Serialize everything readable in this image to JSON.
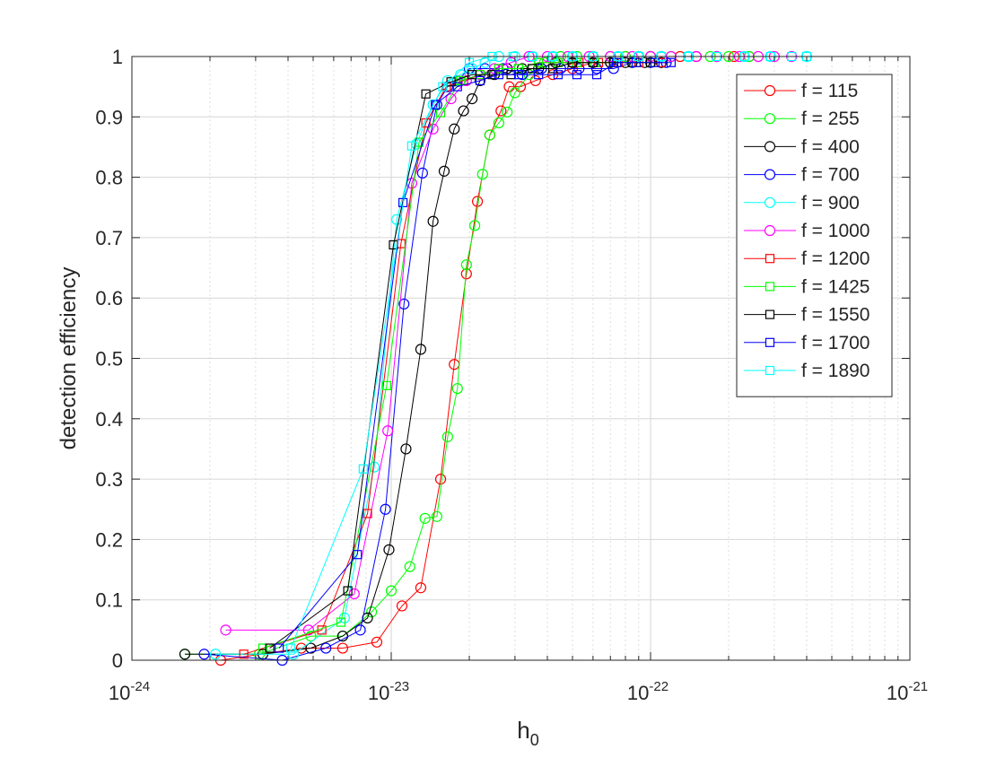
{
  "chart_data": {
    "type": "line",
    "title": "",
    "xlabel": {
      "base": "h",
      "subscript": "0"
    },
    "ylabel": "detection efficiency",
    "xscale": "log",
    "xlim": [
      1e-24,
      1e-21
    ],
    "ylim": [
      0,
      1
    ],
    "grid": true,
    "legend_position": "top-right",
    "x_ticks": [
      {
        "value": 1e-24,
        "base": "10",
        "exp": "-24"
      },
      {
        "value": 1e-23,
        "base": "10",
        "exp": "-23"
      },
      {
        "value": 1e-22,
        "base": "10",
        "exp": "-22"
      },
      {
        "value": 1e-21,
        "base": "10",
        "exp": "-21"
      }
    ],
    "y_ticks": [
      {
        "value": 0,
        "label": "0"
      },
      {
        "value": 0.1,
        "label": "0.1"
      },
      {
        "value": 0.2,
        "label": "0.2"
      },
      {
        "value": 0.3,
        "label": "0.3"
      },
      {
        "value": 0.4,
        "label": "0.4"
      },
      {
        "value": 0.5,
        "label": "0.5"
      },
      {
        "value": 0.6,
        "label": "0.6"
      },
      {
        "value": 0.7,
        "label": "0.7"
      },
      {
        "value": 0.8,
        "label": "0.8"
      },
      {
        "value": 0.9,
        "label": "0.9"
      },
      {
        "value": 1,
        "label": "1"
      }
    ],
    "series": [
      {
        "name": "f = 115",
        "color": "#ff0000",
        "marker": "circle",
        "x": [
          2.2e-24,
          4.5e-24,
          6.5e-24,
          8.8e-24,
          1.1e-23,
          1.3e-23,
          1.55e-23,
          1.75e-23,
          1.95e-23,
          2.15e-23,
          2.4e-23,
          2.65e-23,
          2.85e-23,
          3.15e-23,
          3.6e-23,
          4.2e-23,
          5e-23,
          6e-23,
          7e-23,
          8e-23,
          9e-23,
          1e-22,
          1.1e-22,
          1.3e-22,
          1.5e-22,
          1.8e-22,
          2.1e-22,
          2.4e-22
        ],
        "y": [
          0.0,
          0.02,
          0.02,
          0.03,
          0.09,
          0.12,
          0.3,
          0.49,
          0.64,
          0.76,
          0.87,
          0.91,
          0.95,
          0.95,
          0.96,
          0.97,
          0.98,
          0.99,
          0.99,
          1.0,
          1.0,
          1.0,
          1.0,
          1.0,
          1.0,
          1.0,
          1.0,
          1.0
        ]
      },
      {
        "name": "f = 255",
        "color": "#00ff00",
        "marker": "circle",
        "x": [
          1.6e-24,
          3.1e-24,
          4.9e-24,
          6.5e-24,
          8.4e-24,
          1e-23,
          1.18e-23,
          1.35e-23,
          1.5e-23,
          1.65e-23,
          1.8e-23,
          1.95e-23,
          2.1e-23,
          2.25e-23,
          2.4e-23,
          2.6e-23,
          2.8e-23,
          3e-23,
          3.4e-23,
          3.9e-23,
          4.5e-23,
          5.2e-23,
          6e-23,
          7e-23,
          8e-23,
          9e-23,
          1e-22,
          1.2e-22,
          1.4e-22,
          1.7e-22,
          2e-22,
          2.4e-22
        ],
        "y": [
          0.01,
          0.01,
          0.04,
          0.04,
          0.08,
          0.115,
          0.155,
          0.235,
          0.238,
          0.37,
          0.45,
          0.655,
          0.72,
          0.805,
          0.87,
          0.89,
          0.908,
          0.94,
          0.97,
          0.99,
          1.0,
          1.0,
          1.0,
          1.0,
          1.0,
          1.0,
          1.0,
          1.0,
          1.0,
          1.0,
          1.0,
          1.0
        ]
      },
      {
        "name": "f = 400",
        "color": "#000000",
        "marker": "circle",
        "x": [
          1.6e-24,
          3.2e-24,
          4.9e-24,
          6.5e-24,
          8.1e-24,
          9.8e-24,
          1.14e-23,
          1.3e-23,
          1.45e-23,
          1.6e-23,
          1.75e-23,
          1.9e-23,
          2.05e-23,
          2.2e-23,
          2.5e-23,
          2.8e-23,
          3.2e-23,
          3.7e-23,
          4.3e-23,
          5e-23,
          6e-23,
          7e-23,
          8e-23,
          9.5e-23,
          1.1e-22
        ],
        "y": [
          0.01,
          0.01,
          0.02,
          0.04,
          0.07,
          0.183,
          0.35,
          0.515,
          0.727,
          0.81,
          0.88,
          0.91,
          0.93,
          0.96,
          0.97,
          0.98,
          0.98,
          0.98,
          0.99,
          0.99,
          0.99,
          0.99,
          0.99,
          0.99,
          0.99
        ]
      },
      {
        "name": "f = 700",
        "color": "#0000ff",
        "marker": "circle",
        "x": [
          1.9e-24,
          3.8e-24,
          5.6e-24,
          7.6e-24,
          9.5e-24,
          1.12e-23,
          1.32e-23,
          1.5e-23,
          1.65e-23,
          1.8e-23,
          2e-23,
          2.3e-23,
          2.7e-23,
          3.2e-23,
          3.8e-23,
          4.5e-23,
          5.3e-23,
          6.2e-23,
          7.2e-23,
          8.5e-23,
          1e-22,
          1.15e-22
        ],
        "y": [
          0.01,
          0.0,
          0.02,
          0.05,
          0.25,
          0.59,
          0.807,
          0.92,
          0.95,
          0.96,
          0.98,
          0.98,
          0.98,
          0.97,
          0.98,
          0.98,
          0.98,
          0.98,
          0.98,
          0.99,
          0.99,
          0.99
        ]
      },
      {
        "name": "f = 900",
        "color": "#00ffff",
        "marker": "circle",
        "x": [
          2.1e-24,
          4.2e-24,
          6.6e-24,
          8.6e-24,
          1.05e-23,
          1.25e-23,
          1.45e-23,
          1.65e-23,
          1.85e-23,
          2.05e-23,
          2.3e-23,
          2.6e-23,
          3e-23,
          3.5e-23,
          4.2e-23,
          5e-23,
          6e-23,
          7.5e-23,
          9e-23,
          1.1e-22,
          1.4e-22,
          1.8e-22,
          2.3e-22,
          2.9e-22,
          3.5e-22,
          4e-22
        ],
        "y": [
          0.01,
          0.01,
          0.07,
          0.32,
          0.73,
          0.855,
          0.92,
          0.96,
          0.97,
          0.98,
          0.99,
          1.0,
          1.0,
          1.0,
          1.0,
          1.0,
          1.0,
          1.0,
          1.0,
          1.0,
          1.0,
          1.0,
          1.0,
          1.0,
          1.0,
          1.0
        ]
      },
      {
        "name": "f = 1000",
        "color": "#ff00ff",
        "marker": "circle",
        "x": [
          2.3e-24,
          4.8e-24,
          7.2e-24,
          9.7e-24,
          1.2e-23,
          1.45e-23,
          1.7e-23,
          1.95e-23,
          2.2e-23,
          2.5e-23,
          2.9e-23,
          3.4e-23,
          4e-23,
          4.8e-23,
          5.8e-23,
          7e-23,
          8.5e-23,
          1e-22,
          1.2e-22,
          1.5e-22,
          1.8e-22,
          2.2e-22,
          2.6e-22,
          3e-22,
          3.5e-22
        ],
        "y": [
          0.05,
          0.05,
          0.11,
          0.38,
          0.79,
          0.88,
          0.93,
          0.96,
          0.97,
          0.98,
          0.99,
          1.0,
          1.0,
          1.0,
          1.0,
          1.0,
          1.0,
          1.0,
          1.0,
          1.0,
          1.0,
          1.0,
          1.0,
          1.0,
          1.0
        ]
      },
      {
        "name": "f = 1200",
        "color": "#ff0000",
        "marker": "square",
        "x": [
          2.7e-24,
          5.4e-24,
          8.1e-24,
          1.09e-23,
          1.36e-23,
          1.63e-23,
          1.9e-23,
          2.2e-23,
          2.6e-23,
          3.1e-23,
          3.7e-23,
          4.4e-23,
          5.3e-23,
          6.3e-23,
          7.5e-23,
          9e-23,
          1.1e-22
        ],
        "y": [
          0.01,
          0.05,
          0.243,
          0.69,
          0.89,
          0.95,
          0.96,
          0.97,
          0.98,
          0.98,
          0.99,
          0.99,
          0.99,
          0.99,
          0.99,
          0.99,
          0.99
        ]
      },
      {
        "name": "f = 1425",
        "color": "#00ff00",
        "marker": "square",
        "x": [
          3.2e-24,
          6.4e-24,
          9.6e-24,
          1.28e-23,
          1.55e-23,
          1.85e-23,
          2.2e-23,
          2.6e-23,
          3.1e-23,
          3.7e-23,
          4.4e-23,
          5.2e-23,
          6.1e-23,
          7.2e-23,
          8.5e-23,
          1e-22
        ],
        "y": [
          0.02,
          0.063,
          0.455,
          0.858,
          0.907,
          0.96,
          0.97,
          0.98,
          0.98,
          0.99,
          0.99,
          0.99,
          0.99,
          0.99,
          0.99,
          0.99
        ]
      },
      {
        "name": "f = 1550",
        "color": "#000000",
        "marker": "square",
        "x": [
          3.4e-24,
          6.8e-24,
          1.02e-23,
          1.36e-23,
          1.7e-23,
          2.05e-23,
          2.45e-23,
          2.9e-23,
          3.5e-23,
          4.2e-23,
          5e-23,
          6e-23,
          7.2e-23,
          8.5e-23,
          1e-22
        ],
        "y": [
          0.02,
          0.115,
          0.688,
          0.938,
          0.958,
          0.97,
          0.97,
          0.97,
          0.98,
          0.98,
          0.99,
          0.99,
          0.99,
          0.99,
          0.99
        ]
      },
      {
        "name": "f = 1700",
        "color": "#0000ff",
        "marker": "square",
        "x": [
          3.7e-24,
          7.4e-24,
          1.11e-23,
          1.48e-23,
          1.8e-23,
          2.2e-23,
          2.6e-23,
          3.1e-23,
          3.7e-23,
          4.4e-23,
          5.2e-23,
          6.2e-23,
          7.4e-23,
          8.8e-23,
          1.04e-22,
          1.2e-22
        ],
        "y": [
          0.02,
          0.175,
          0.758,
          0.92,
          0.95,
          0.96,
          0.97,
          0.97,
          0.97,
          0.97,
          0.97,
          0.97,
          0.99,
          0.99,
          0.99,
          0.99
        ]
      },
      {
        "name": "f = 1890",
        "color": "#00ffff",
        "marker": "square",
        "x": [
          4.1e-24,
          7.8e-24,
          1.2e-23,
          1.58e-23,
          2e-23,
          2.45e-23,
          2.95e-23,
          3.5e-23,
          4.2e-23,
          5e-23,
          6e-23,
          7.5e-23,
          9e-23,
          1.1e-22,
          1.4e-22,
          1.8e-22,
          2.3e-22,
          2.9e-22,
          3.5e-22,
          4e-22
        ],
        "y": [
          0.02,
          0.317,
          0.852,
          0.95,
          0.99,
          1.0,
          1.0,
          1.0,
          1.0,
          1.0,
          1.0,
          1.0,
          1.0,
          1.0,
          1.0,
          1.0,
          1.0,
          1.0,
          1.0,
          1.0
        ]
      }
    ]
  }
}
